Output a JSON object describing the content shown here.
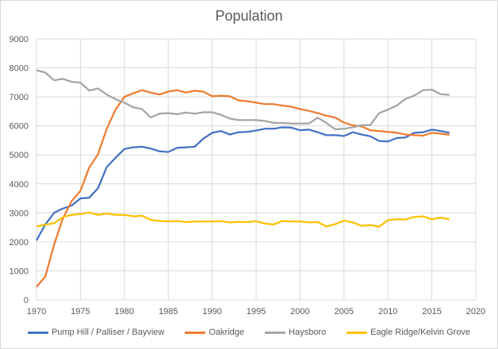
{
  "chart_data": {
    "type": "line",
    "title": "Population",
    "xlabel": "",
    "ylabel": "",
    "xlim": [
      1970,
      2020
    ],
    "ylim": [
      0,
      9000
    ],
    "x_ticks": [
      1970,
      1975,
      1980,
      1985,
      1990,
      1995,
      2000,
      2005,
      2010,
      2015,
      2020
    ],
    "y_ticks": [
      0,
      1000,
      2000,
      3000,
      4000,
      5000,
      6000,
      7000,
      8000,
      9000
    ],
    "grid": true,
    "legend_position": "bottom",
    "x": [
      1970,
      1971,
      1972,
      1973,
      1974,
      1975,
      1976,
      1977,
      1978,
      1979,
      1980,
      1981,
      1982,
      1983,
      1984,
      1985,
      1986,
      1987,
      1988,
      1989,
      1990,
      1991,
      1992,
      1993,
      1994,
      1995,
      1996,
      1997,
      1998,
      1999,
      2000,
      2001,
      2002,
      2003,
      2004,
      2005,
      2006,
      2007,
      2008,
      2009,
      2010,
      2011,
      2012,
      2013,
      2014,
      2015,
      2016,
      2017
    ],
    "series": [
      {
        "name": "Pump Hill / Palliser / Bayview",
        "color": "#4472c4",
        "values": [
          2050,
          2600,
          3000,
          3150,
          3250,
          3500,
          3520,
          3850,
          4580,
          4900,
          5200,
          5260,
          5280,
          5220,
          5120,
          5100,
          5240,
          5260,
          5280,
          5560,
          5760,
          5820,
          5700,
          5780,
          5790,
          5840,
          5900,
          5900,
          5950,
          5940,
          5850,
          5870,
          5780,
          5680,
          5680,
          5650,
          5780,
          5700,
          5640,
          5480,
          5460,
          5580,
          5600,
          5760,
          5780,
          5870,
          5820,
          5760
        ]
      },
      {
        "name": "Oakridge",
        "color": "#ed7d31",
        "values": [
          450,
          800,
          1900,
          2800,
          3400,
          3760,
          4560,
          5020,
          5900,
          6560,
          7000,
          7120,
          7230,
          7150,
          7080,
          7180,
          7230,
          7150,
          7210,
          7180,
          7020,
          7040,
          7020,
          6880,
          6850,
          6800,
          6750,
          6750,
          6700,
          6660,
          6580,
          6520,
          6440,
          6350,
          6290,
          6110,
          6020,
          5980,
          5850,
          5820,
          5790,
          5760,
          5700,
          5680,
          5660,
          5760,
          5730,
          5690
        ]
      },
      {
        "name": "Haysboro",
        "color": "#a5a5a5",
        "values": [
          7920,
          7840,
          7570,
          7620,
          7520,
          7490,
          7220,
          7290,
          7080,
          6920,
          6800,
          6640,
          6580,
          6290,
          6420,
          6440,
          6400,
          6460,
          6420,
          6470,
          6470,
          6380,
          6250,
          6200,
          6200,
          6200,
          6170,
          6100,
          6100,
          6080,
          6080,
          6080,
          6280,
          6100,
          5880,
          5900,
          5950,
          6020,
          6030,
          6440,
          6560,
          6700,
          6930,
          7040,
          7230,
          7250,
          7090,
          7070
        ]
      },
      {
        "name": "Eagle Ridge/Kelvin Grove",
        "color": "#ffc000",
        "values": [
          2530,
          2590,
          2640,
          2850,
          2930,
          2960,
          3010,
          2930,
          2980,
          2930,
          2930,
          2880,
          2900,
          2760,
          2720,
          2700,
          2720,
          2680,
          2700,
          2700,
          2700,
          2710,
          2670,
          2690,
          2680,
          2710,
          2630,
          2600,
          2720,
          2700,
          2700,
          2670,
          2680,
          2530,
          2610,
          2730,
          2670,
          2550,
          2580,
          2520,
          2750,
          2780,
          2770,
          2860,
          2880,
          2780,
          2830,
          2780
        ]
      }
    ]
  }
}
